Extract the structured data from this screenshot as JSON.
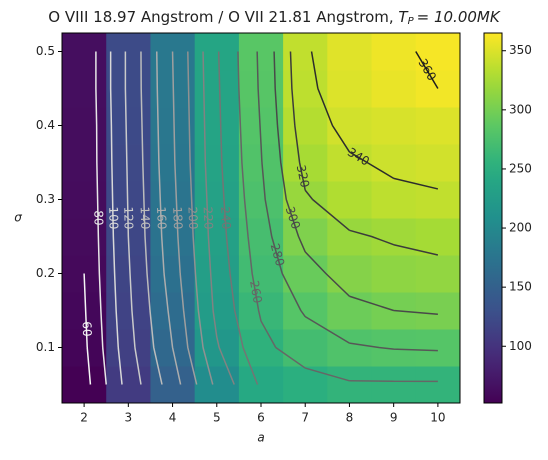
{
  "chart_data": {
    "type": "heatmap",
    "title": "O VIII 18.97 Angstrom / O VII 21.81 Angstrom,",
    "title_math": {
      "symbol": "T",
      "subscript": "P",
      "rest": "= 10.00MK"
    },
    "x_label": "a",
    "y_label": "σ",
    "x": [
      2,
      3,
      4,
      5,
      6,
      7,
      8,
      9,
      10
    ],
    "y": [
      0.05,
      0.1,
      0.15,
      0.2,
      0.25,
      0.3,
      0.35,
      0.4,
      0.45,
      0.5
    ],
    "z": [
      [
        52,
        108,
        150,
        205,
        243,
        252,
        258,
        258,
        258
      ],
      [
        56,
        113,
        160,
        218,
        255,
        270,
        278,
        281,
        282
      ],
      [
        58,
        116,
        165,
        225,
        262,
        282,
        295,
        300,
        302
      ],
      [
        60,
        118,
        170,
        228,
        268,
        293,
        308,
        313,
        315
      ],
      [
        61,
        120,
        173,
        231,
        272,
        305,
        318,
        322,
        325
      ],
      [
        62,
        121,
        175,
        233,
        276,
        318,
        330,
        336,
        338
      ],
      [
        63,
        122,
        177,
        235,
        279,
        326,
        338,
        343,
        345
      ],
      [
        63,
        123,
        178,
        236,
        281,
        332,
        345,
        348,
        350
      ],
      [
        64,
        124,
        179,
        237,
        283,
        336,
        350,
        356,
        360
      ],
      [
        64,
        124,
        180,
        238,
        284,
        338,
        352,
        358,
        362
      ]
    ],
    "xlim": [
      1.5,
      10.5
    ],
    "ylim": [
      0.025,
      0.525
    ],
    "xticks": [
      2,
      3,
      4,
      5,
      6,
      7,
      8,
      9,
      10
    ],
    "yticks": [
      0.1,
      0.2,
      0.3,
      0.4,
      0.5
    ],
    "clim": [
      52,
      365
    ],
    "cticks": [
      100,
      150,
      200,
      250,
      300,
      350
    ],
    "colormap": "viridis",
    "contour_levels": [
      60,
      80,
      100,
      120,
      140,
      160,
      180,
      200,
      220,
      240,
      260,
      280,
      300,
      320,
      340,
      360
    ]
  }
}
